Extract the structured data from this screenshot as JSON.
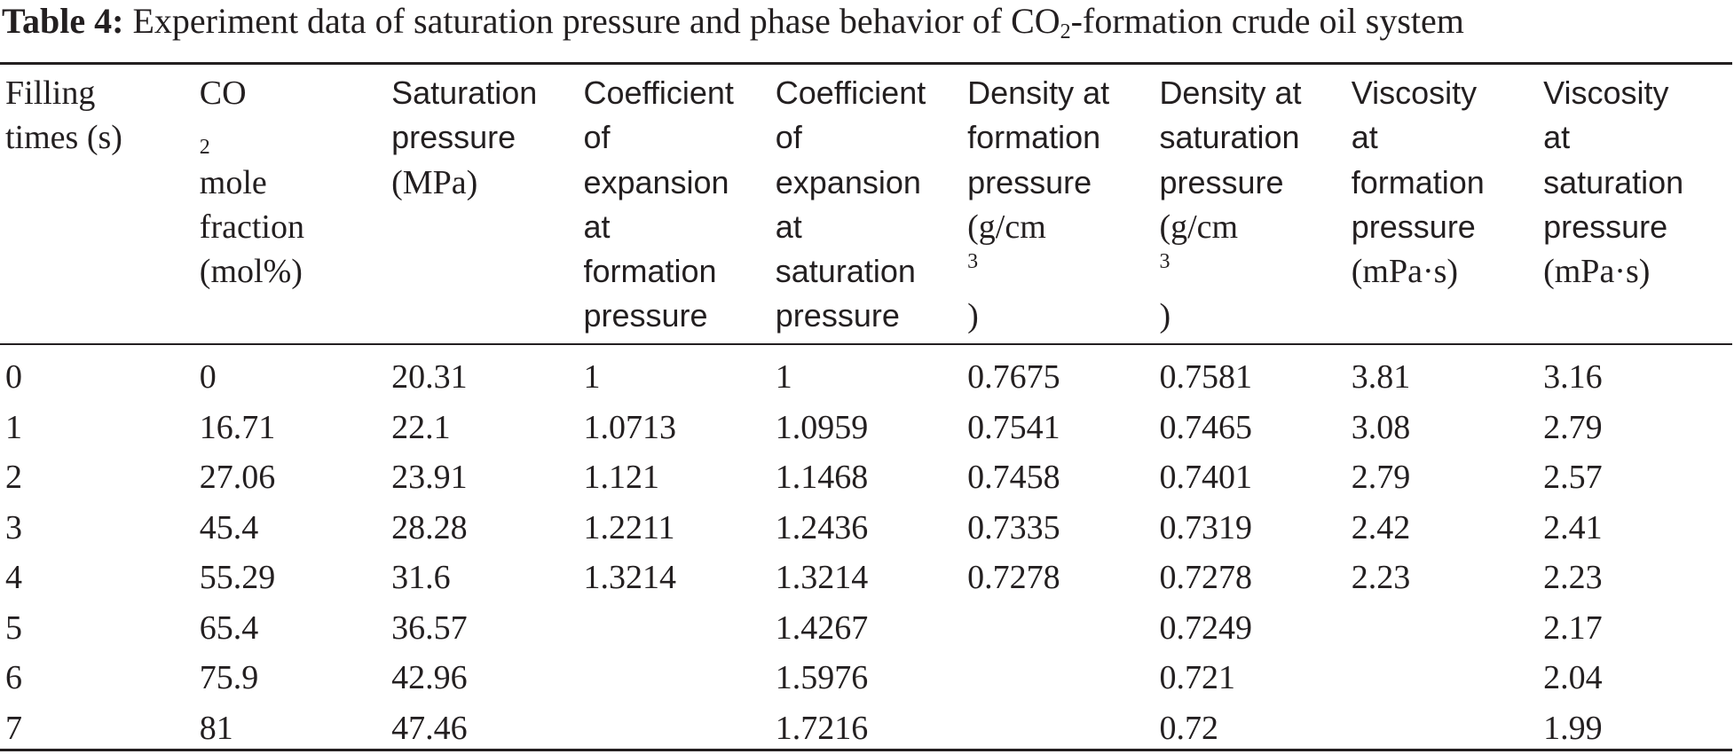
{
  "caption": {
    "label": "Table 4:",
    "text_before_sub": " Experiment data of saturation pressure and phase behavior of CO",
    "subscript": "2",
    "text_after_sub": "-formation crude oil system"
  },
  "table": {
    "headers": [
      {
        "lines": [
          "Filling",
          "times (s)"
        ]
      },
      {
        "lines": [
          "CO",
          "fraction",
          "(mol%)"
        ],
        "first_line_sub": "2",
        "first_line_suffix": " mole"
      },
      {
        "lines": [
          "Saturation",
          "pressure",
          "(MPa)"
        ]
      },
      {
        "lines": [
          "Coefficient",
          "of",
          "expansion",
          "at",
          "formation",
          "pressure"
        ]
      },
      {
        "lines": [
          "Coefficient",
          "of",
          "expansion",
          "at",
          "saturation",
          "pressure"
        ]
      },
      {
        "lines": [
          "Density at",
          "formation",
          "pressure",
          "(g/cm",
          ")"
        ],
        "sup_on_line_4": "3"
      },
      {
        "lines": [
          "Density at",
          "saturation",
          "pressure",
          "(g/cm",
          ")"
        ],
        "sup_on_line_4": "3"
      },
      {
        "lines": [
          "Viscosity",
          "at",
          "formation",
          "pressure",
          "(mPa·s)"
        ]
      },
      {
        "lines": [
          "Viscosity",
          "at",
          "saturation",
          "pressure",
          "(mPa·s)"
        ]
      }
    ],
    "rows": [
      [
        "0",
        "0",
        "20.31",
        "1",
        "1",
        "0.7675",
        "0.7581",
        "3.81",
        "3.16"
      ],
      [
        "1",
        "16.71",
        "22.1",
        "1.0713",
        "1.0959",
        "0.7541",
        "0.7465",
        "3.08",
        "2.79"
      ],
      [
        "2",
        "27.06",
        "23.91",
        "1.121",
        "1.1468",
        "0.7458",
        "0.7401",
        "2.79",
        "2.57"
      ],
      [
        "3",
        "45.4",
        "28.28",
        "1.2211",
        "1.2436",
        "0.7335",
        "0.7319",
        "2.42",
        "2.41"
      ],
      [
        "4",
        "55.29",
        "31.6",
        "1.3214",
        "1.3214",
        "0.7278",
        "0.7278",
        "2.23",
        "2.23"
      ],
      [
        "5",
        "65.4",
        "36.57",
        "",
        "1.4267",
        "",
        "0.7249",
        "",
        "2.17"
      ],
      [
        "6",
        "75.9",
        "42.96",
        "",
        "1.5976",
        "",
        "0.721",
        "",
        "2.04"
      ],
      [
        "7",
        "81",
        "47.46",
        "",
        "1.7216",
        "",
        "0.72",
        "",
        "1.99"
      ]
    ]
  }
}
